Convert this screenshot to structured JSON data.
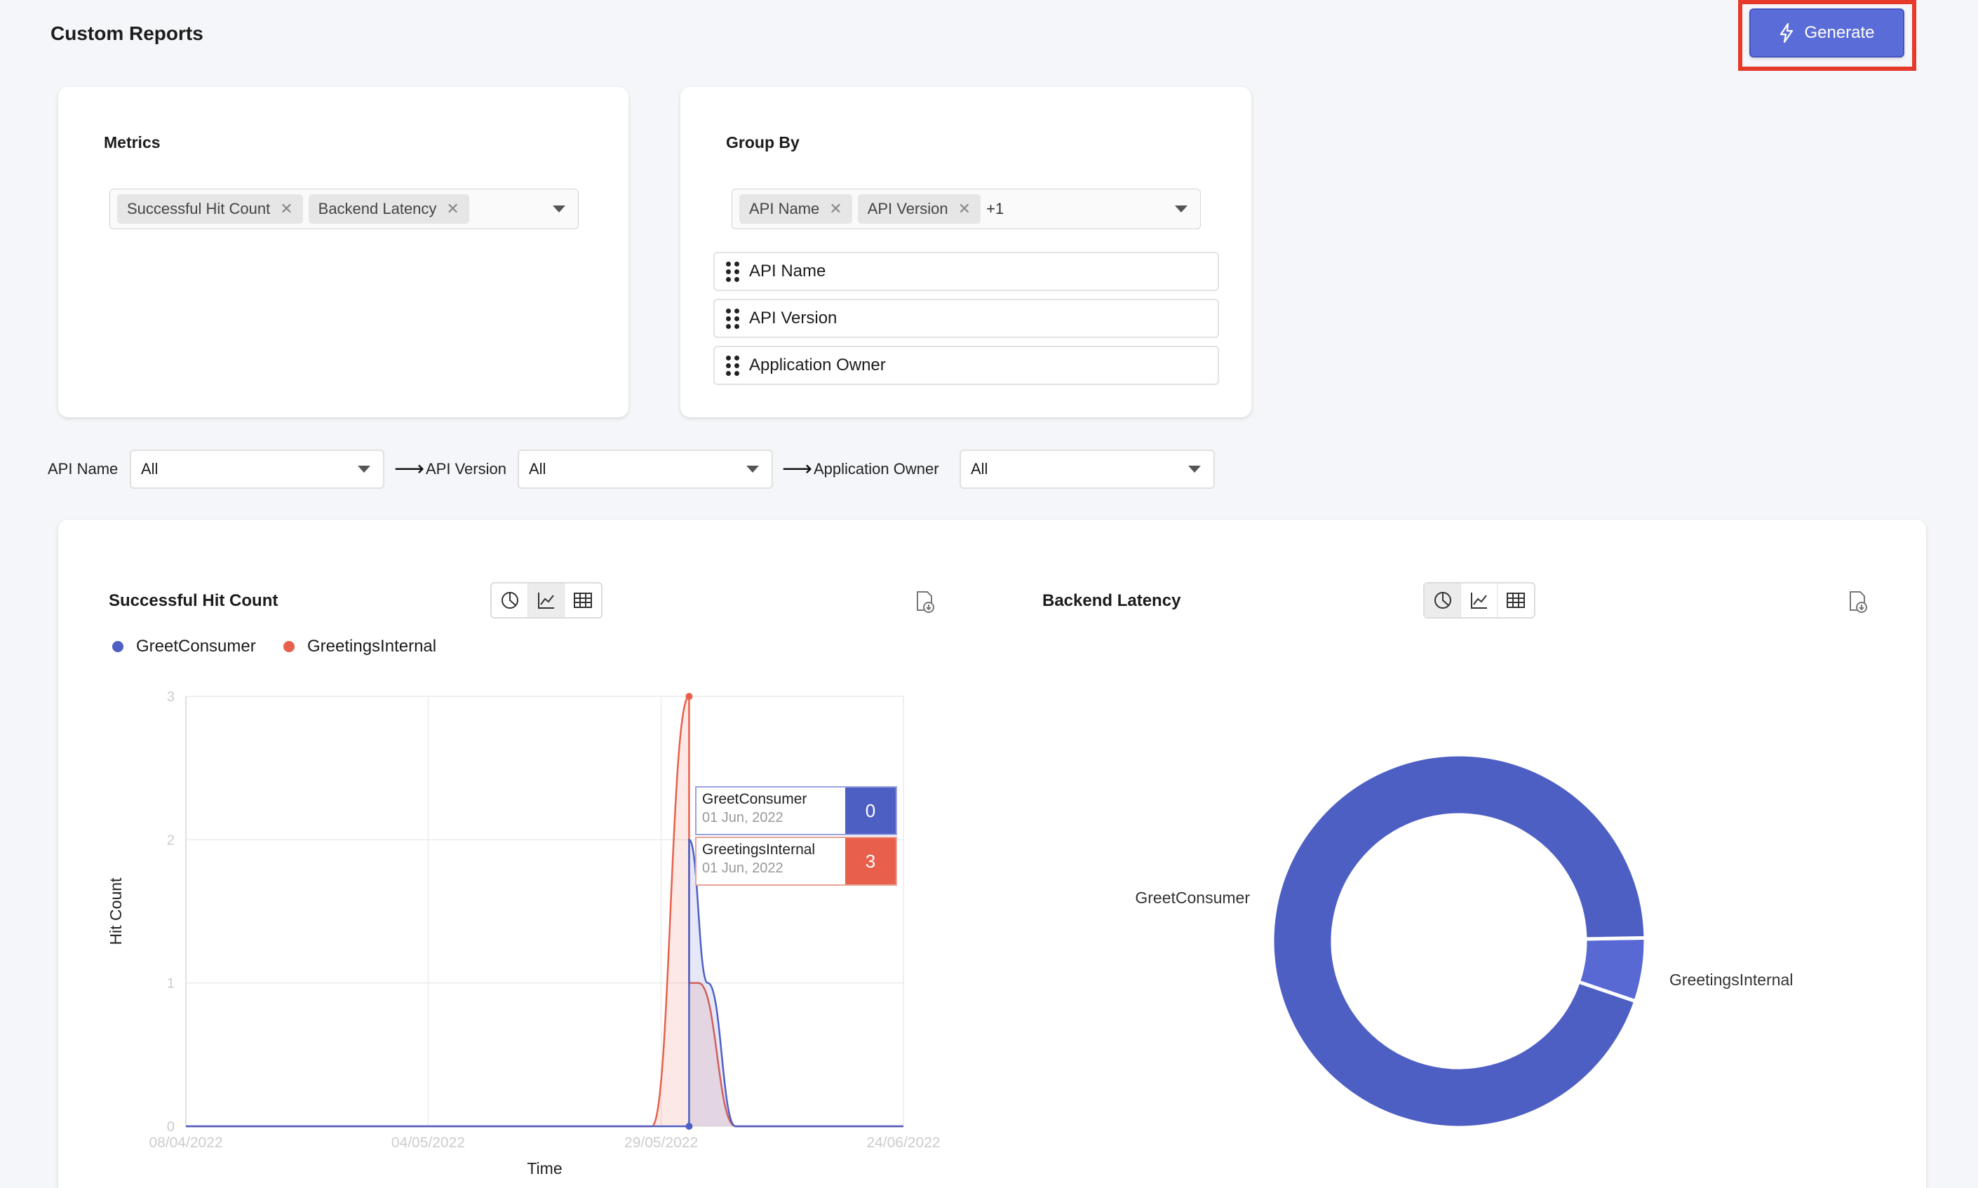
{
  "page": {
    "title": "Custom Reports"
  },
  "toolbar": {
    "generate_label": "Generate"
  },
  "metrics": {
    "label": "Metrics",
    "chips": [
      "Successful Hit Count",
      "Backend Latency"
    ]
  },
  "group_by": {
    "label": "Group By",
    "chips": [
      "API Name",
      "API Version"
    ],
    "more_count": "+1",
    "order": [
      "API Name",
      "API Version",
      "Application Owner"
    ]
  },
  "filters": [
    {
      "label": "API Name",
      "value": "All"
    },
    {
      "label": "API Version",
      "value": "All"
    },
    {
      "label": "Application Owner",
      "value": "All"
    }
  ],
  "colors": {
    "accent": "#5a6cd8",
    "series_blue": "#4e5fc4",
    "series_red": "#e8604c",
    "highlight": "#e5392a"
  },
  "line_chart": {
    "title": "Successful Hit Count",
    "view": "line",
    "tooltip": [
      {
        "name": "GreetConsumer",
        "date": "01 Jun, 2022",
        "value": "0"
      },
      {
        "name": "GreetingsInternal",
        "date": "01 Jun, 2022",
        "value": "3"
      }
    ]
  },
  "pie_chart": {
    "title": "Backend Latency",
    "view": "pie"
  },
  "chart_data": [
    {
      "type": "area",
      "title": "Successful Hit Count",
      "xlabel": "Time",
      "ylabel": "Hit Count",
      "x_ticks": [
        "08/04/2022",
        "04/05/2022",
        "29/05/2022",
        "24/06/2022"
      ],
      "y_ticks": [
        0,
        1,
        2,
        3
      ],
      "ylim": [
        0,
        3
      ],
      "xlim": [
        "08/04/2022",
        "24/06/2022"
      ],
      "grid": true,
      "legend": "top-left",
      "series": [
        {
          "name": "GreetConsumer",
          "color": "#4e5fc4",
          "points": [
            [
              "08/04/2022",
              0
            ],
            [
              "30/05/2022",
              0
            ],
            [
              "01/06/2022",
              0
            ],
            [
              "01/06/2022",
              2
            ],
            [
              "03/06/2022",
              1
            ],
            [
              "06/06/2022",
              0
            ],
            [
              "24/06/2022",
              0
            ]
          ]
        },
        {
          "name": "GreetingsInternal",
          "color": "#e8604c",
          "points": [
            [
              "08/04/2022",
              0
            ],
            [
              "28/05/2022",
              0
            ],
            [
              "01/06/2022",
              3
            ],
            [
              "01/06/2022",
              1
            ],
            [
              "02/06/2022",
              1
            ],
            [
              "06/06/2022",
              0
            ],
            [
              "24/06/2022",
              0
            ]
          ]
        }
      ]
    },
    {
      "type": "pie",
      "title": "Backend Latency",
      "donut": true,
      "slices": [
        {
          "label": "GreetConsumer",
          "value": 94.5,
          "color": "#4e5fc4"
        },
        {
          "label": "GreetingsInternal",
          "value": 5.5,
          "color": "#5869d4"
        }
      ]
    }
  ]
}
